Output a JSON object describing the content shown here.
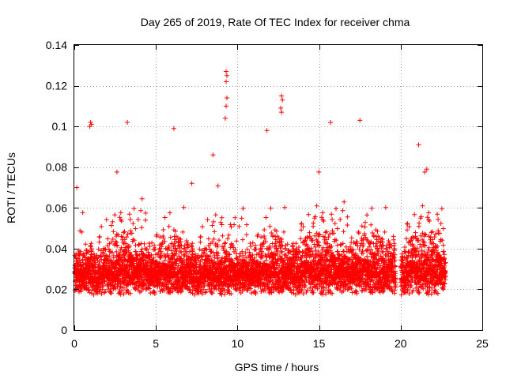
{
  "chart_data": {
    "type": "scatter",
    "title": "Day 265 of 2019, Rate Of TEC Index for receiver chma",
    "xlabel": "GPS time / hours",
    "ylabel": "ROTI / TECUs",
    "xlim": [
      0,
      25
    ],
    "ylim": [
      0,
      0.14
    ],
    "x_ticks": [
      0,
      5,
      10,
      15,
      20,
      25
    ],
    "y_ticks": [
      0,
      0.02,
      0.04,
      0.06,
      0.08,
      0.1,
      0.12,
      0.14
    ],
    "x_tick_labels": [
      "0",
      "5",
      "10",
      "15",
      "20",
      "25"
    ],
    "y_tick_labels": [
      "0",
      "0.02",
      "0.04",
      "0.06",
      "0.08",
      "0.1",
      "0.12",
      "0.14"
    ],
    "grid": true,
    "marker": "+",
    "marker_color": "#ff0000",
    "data_gap": [
      19.7,
      20.0
    ],
    "series": [
      {
        "name": "ROTI",
        "notable_points": [
          {
            "x": 9.3,
            "y": 0.127
          },
          {
            "x": 9.35,
            "y": 0.125
          },
          {
            "x": 9.3,
            "y": 0.122
          },
          {
            "x": 9.35,
            "y": 0.114
          },
          {
            "x": 9.3,
            "y": 0.11
          },
          {
            "x": 9.25,
            "y": 0.104
          },
          {
            "x": 12.7,
            "y": 0.115
          },
          {
            "x": 12.75,
            "y": 0.113
          },
          {
            "x": 12.65,
            "y": 0.109
          },
          {
            "x": 12.7,
            "y": 0.107
          },
          {
            "x": 1.0,
            "y": 0.102
          },
          {
            "x": 1.05,
            "y": 0.101
          },
          {
            "x": 0.95,
            "y": 0.1
          },
          {
            "x": 3.25,
            "y": 0.102
          },
          {
            "x": 6.1,
            "y": 0.099
          },
          {
            "x": 11.8,
            "y": 0.098
          },
          {
            "x": 15.7,
            "y": 0.102
          },
          {
            "x": 17.5,
            "y": 0.103
          },
          {
            "x": 21.1,
            "y": 0.091
          },
          {
            "x": 8.5,
            "y": 0.086
          },
          {
            "x": 21.6,
            "y": 0.079
          },
          {
            "x": 0.15,
            "y": 0.07
          },
          {
            "x": 7.2,
            "y": 0.072
          }
        ]
      }
    ]
  }
}
